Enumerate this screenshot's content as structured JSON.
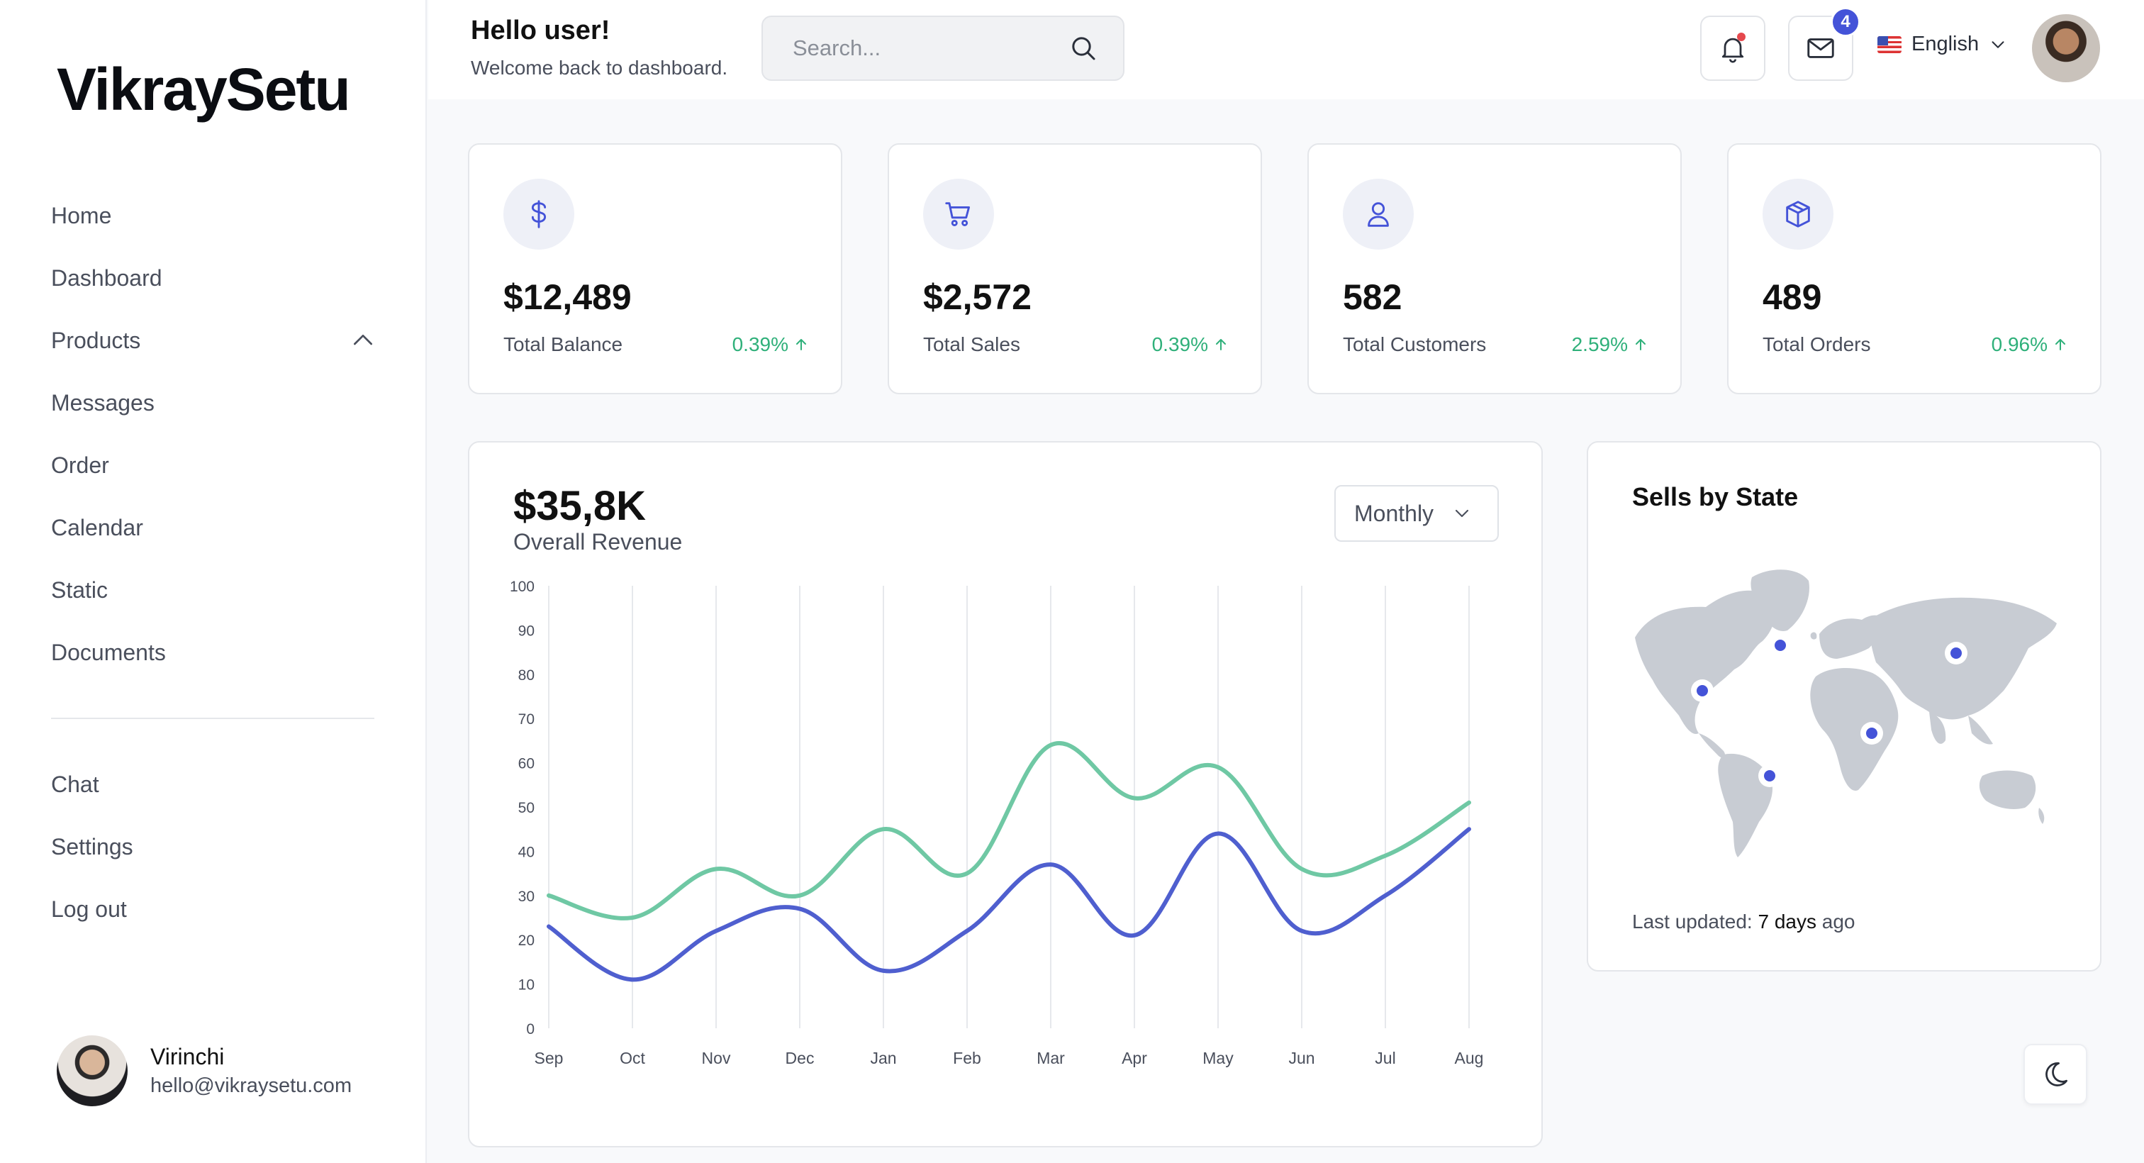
{
  "brand": {
    "logo_text": "VikraySetu"
  },
  "sidebar": {
    "items": [
      {
        "label": "Home"
      },
      {
        "label": "Dashboard"
      },
      {
        "label": "Products"
      },
      {
        "label": "Messages"
      },
      {
        "label": "Order"
      },
      {
        "label": "Calendar"
      },
      {
        "label": "Static"
      },
      {
        "label": "Documents"
      }
    ],
    "secondary": [
      {
        "label": "Chat"
      },
      {
        "label": "Settings"
      },
      {
        "label": "Log out"
      }
    ],
    "user": {
      "name": "Virinchi",
      "email": "hello@vikraysetu.com"
    }
  },
  "header": {
    "title": "Hello user!",
    "subtitle": "Welcome back to dashboard.",
    "search_placeholder": "Search...",
    "mail_count": "4",
    "language": "English"
  },
  "stats": [
    {
      "icon": "dollar-icon",
      "value": "$12,489",
      "label": "Total Balance",
      "change": "0.39%"
    },
    {
      "icon": "cart-icon",
      "value": "$2,572",
      "label": "Total Sales",
      "change": "0.39%"
    },
    {
      "icon": "user-icon",
      "value": "582",
      "label": "Total Customers",
      "change": "2.59%"
    },
    {
      "icon": "box-icon",
      "value": "489",
      "label": "Total Orders",
      "change": "0.96%"
    }
  ],
  "revenue": {
    "value": "$35,8K",
    "label": "Overall Revenue",
    "period": "Monthly"
  },
  "chart_data": {
    "type": "line",
    "categories": [
      "Sep",
      "Oct",
      "Nov",
      "Dec",
      "Jan",
      "Feb",
      "Mar",
      "Apr",
      "May",
      "Jun",
      "Jul",
      "Aug"
    ],
    "series": [
      {
        "values": [
          30,
          25,
          36,
          30,
          45,
          35,
          64,
          52,
          59,
          36,
          39,
          51
        ],
        "color": "#6fc8a4"
      },
      {
        "values": [
          23,
          11,
          22,
          27,
          13,
          22,
          37,
          21,
          44,
          22,
          30,
          45
        ],
        "color": "#4f5fcf"
      }
    ],
    "ylim": [
      0,
      100
    ],
    "yticks": [
      0,
      10,
      20,
      30,
      40,
      50,
      60,
      70,
      80,
      90,
      100
    ],
    "grid": "vertical"
  },
  "map": {
    "title": "Sells by State",
    "updated_prefix": "Last updated:",
    "updated_value": "7 days",
    "updated_suffix": "ago"
  },
  "colors": {
    "accent": "#4453d8",
    "positive": "#2fb07a",
    "notification": "#e5484d"
  }
}
